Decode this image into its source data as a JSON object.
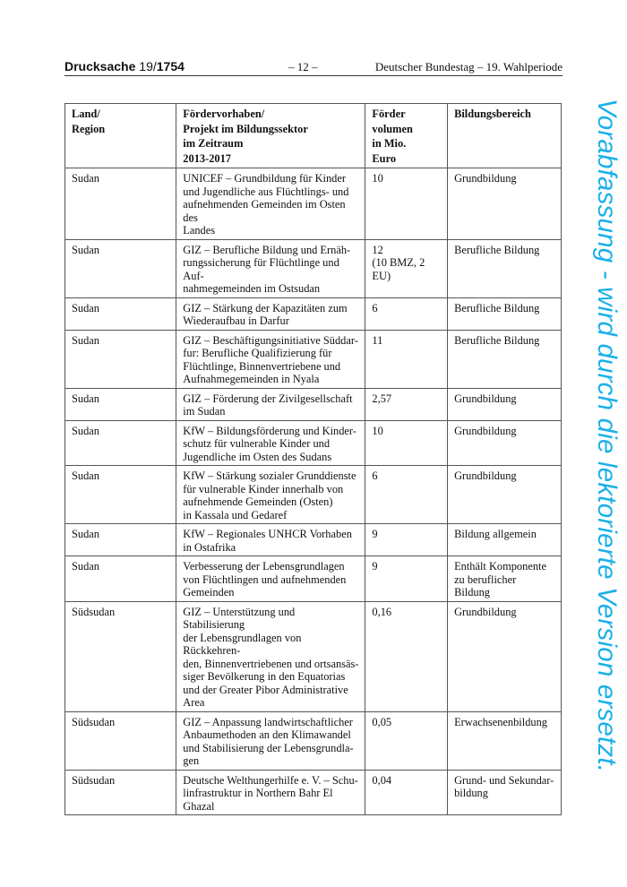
{
  "header": {
    "doc_label": "Drucksache",
    "doc_number_prefix": "19/",
    "doc_number": "1754",
    "page": "– 12 –",
    "publisher": "Deutscher Bundestag – 19. Wahlperiode"
  },
  "table": {
    "columns": [
      "Land/\nRegion",
      "Fördervorhaben/\nProjekt im Bildungssektor\nim Zeitraum\n2013-2017",
      "Förder\nvolumen\nin Mio.\nEuro",
      "Bildungsbereich"
    ],
    "rows": [
      [
        "Sudan",
        "UNICEF – Grundbildung für Kinder\nund Jugendliche aus Flüchtlings- und\naufnehmenden Gemeinden im Osten des\nLandes",
        "10",
        "Grundbildung"
      ],
      [
        "Sudan",
        "GIZ – Berufliche Bildung und Ernäh-\nrungssicherung für Flüchtlinge und Auf-\nnahmegemeinden im Ostsudan",
        "12\n(10 BMZ, 2\nEU)",
        "Berufliche Bildung"
      ],
      [
        "Sudan",
        "GIZ – Stärkung der Kapazitäten zum\nWiederaufbau in Darfur",
        "6",
        "Berufliche Bildung"
      ],
      [
        "Sudan",
        "GIZ – Beschäftigungsinitiative Süddar-\nfur: Berufliche Qualifizierung für\nFlüchtlinge, Binnenvertriebene und\nAufnahmegemeinden in Nyala",
        "11",
        "Berufliche Bildung"
      ],
      [
        "Sudan",
        "GIZ – Förderung der Zivilgesellschaft\nim Sudan",
        "2,57",
        "Grundbildung"
      ],
      [
        "Sudan",
        "KfW – Bildungsförderung und Kinder-\nschutz für vulnerable Kinder und\nJugendliche im Osten des Sudans",
        "10",
        "Grundbildung"
      ],
      [
        "Sudan",
        "KfW – Stärkung sozialer Grunddienste\nfür vulnerable Kinder innerhalb von\naufnehmende Gemeinden (Osten)\nin Kassala und Gedaref",
        "6",
        "Grundbildung"
      ],
      [
        "Sudan",
        "KfW – Regionales UNHCR Vorhaben\nin Ostafrika",
        "9",
        "Bildung allgemein"
      ],
      [
        "Sudan",
        "Verbesserung der Lebensgrundlagen\nvon Flüchtlingen und aufnehmenden\nGemeinden",
        "9",
        "Enthält Komponente\nzu beruflicher Bildung"
      ],
      [
        "Südsudan",
        "GIZ – Unterstützung und Stabilisierung\nder Lebensgrundlagen von Rückkehren-\nden, Binnenvertriebenen und ortsansäs-\nsiger Bevölkerung in den Equatorias\nund der Greater Pibor Administrative\nArea",
        "0,16",
        "Grundbildung"
      ],
      [
        "Südsudan",
        "GIZ – Anpassung landwirtschaftlicher\nAnbaumethoden an den Klimawandel\nund Stabilisierung der Lebensgrundla-\ngen",
        "0,05",
        "Erwachsenenbildung"
      ],
      [
        "Südsudan",
        "Deutsche Welthungerhilfe e. V. – Schu-\nlinfrastruktur in Northern Bahr El\nGhazal",
        "0,04",
        "Grund- und Sekundar-\nbildung"
      ]
    ]
  },
  "watermark": {
    "text": "Vorabfassung - wird durch die lektorierte Version ersetzt.",
    "color": "#1ab0ea"
  }
}
